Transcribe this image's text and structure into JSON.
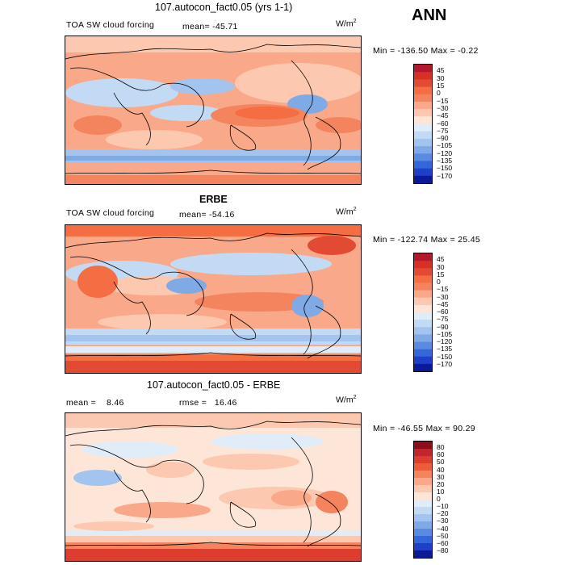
{
  "season": "ANN",
  "panels": [
    {
      "title": "107.autocon_fact0.05 (yrs 1-1)",
      "left_label": "TOA SW cloud forcing",
      "mean_text": "mean= -45.71",
      "units": "W/m",
      "units_sup": "2",
      "minmax": "Min = -136.50  Max =   -0.22",
      "colorbar": {
        "labels": [
          "45",
          "30",
          "15",
          "0",
          "−15",
          "−30",
          "−45",
          "−60",
          "−75",
          "−90",
          "−105",
          "−120",
          "−135",
          "−150",
          "−170"
        ],
        "colors": [
          "#b2182b",
          "#d73027",
          "#e34a33",
          "#f46d43",
          "#f4845e",
          "#f9a98a",
          "#fcc9b0",
          "#fde6d8",
          "#e0ecf8",
          "#c3daf4",
          "#a2c4ee",
          "#80aae6",
          "#5b8be0",
          "#3467d9",
          "#1f3fc8",
          "#0b1a99"
        ]
      }
    },
    {
      "title": "ERBE",
      "left_label": "TOA SW cloud forcing",
      "mean_text": "mean= -54.16",
      "units": "W/m",
      "units_sup": "2",
      "minmax": "Min = -122.74  Max =  25.45",
      "colorbar": {
        "labels": [
          "45",
          "30",
          "15",
          "0",
          "−15",
          "−30",
          "−45",
          "−60",
          "−75",
          "−90",
          "−105",
          "−120",
          "−135",
          "−150",
          "−170"
        ],
        "colors": [
          "#b2182b",
          "#d73027",
          "#e34a33",
          "#f46d43",
          "#f4845e",
          "#f9a98a",
          "#fcc9b0",
          "#fde6d8",
          "#e0ecf8",
          "#c3daf4",
          "#a2c4ee",
          "#80aae6",
          "#5b8be0",
          "#3467d9",
          "#1f3fc8",
          "#0b1a99"
        ]
      }
    },
    {
      "title": "107.autocon_fact0.05 - ERBE",
      "mean_text": "mean =    8.46",
      "rmse_text": "rmse =   16.46",
      "units": "W/m",
      "units_sup": "2",
      "minmax": "Min = -46.55  Max =  90.29",
      "colorbar": {
        "labels": [
          "80",
          "60",
          "50",
          "40",
          "30",
          "20",
          "10",
          "0",
          "−10",
          "−20",
          "−30",
          "−40",
          "−50",
          "−60",
          "−80"
        ],
        "colors": [
          "#8b0f1a",
          "#c0262c",
          "#dc3d2f",
          "#ec5b3a",
          "#f4845e",
          "#f9a98a",
          "#fcc9b0",
          "#fde6d8",
          "#e0ecf8",
          "#c3daf4",
          "#a2c4ee",
          "#80aae6",
          "#5b8be0",
          "#3467d9",
          "#1f3fc8",
          "#0b1a99"
        ]
      }
    }
  ]
}
